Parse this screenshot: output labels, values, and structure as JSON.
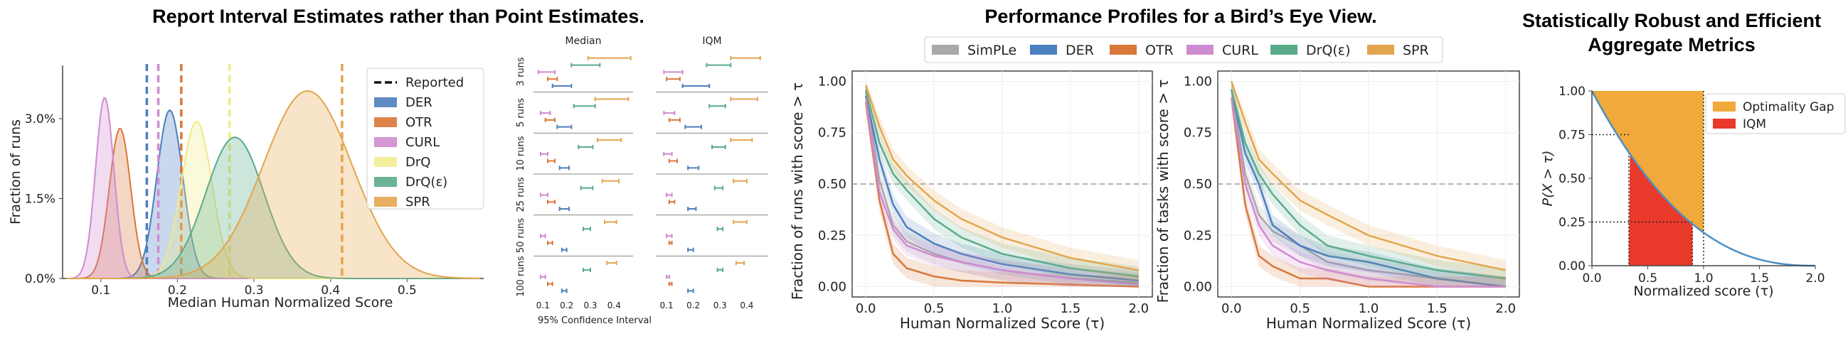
{
  "titles": {
    "t1": "Report Interval Estimates rather than Point Estimates.",
    "t2": "Performance Profiles for a Bird’s Eye View.",
    "t3a": "Statistically Robust and Efficient",
    "t3b": "Aggregate Metrics"
  },
  "colors": {
    "SimPLe": "#a9a9a9",
    "DER": "#4c7fbf",
    "OTR": "#d9773a",
    "CURL": "#cf8bd0",
    "DrQ": "#f0ea86",
    "DrQ(ε)": "#5aab8a",
    "SPR": "#e3a54d",
    "OptimalityGap": "#f0a93a",
    "IQM": "#e8392b"
  },
  "chart_data": [
    {
      "type": "area",
      "id": "density",
      "xlabel": "Median Human Normalized Score",
      "ylabel": "Fraction of runs",
      "xlim": [
        0.05,
        0.6
      ],
      "ylim": [
        0,
        0.04
      ],
      "xticks": [
        "0.1",
        "0.2",
        "0.3",
        "0.4",
        "0.5"
      ],
      "yticks": [
        "0.0%",
        "1.5%",
        "3.0%"
      ],
      "legend_title": "Reported",
      "legend_position": "top-right",
      "series": [
        {
          "name": "DER",
          "mean": 0.19,
          "sd": 0.017,
          "peak": 0.0316,
          "reported": 0.16
        },
        {
          "name": "OTR",
          "mean": 0.125,
          "sd": 0.014,
          "peak": 0.0282,
          "reported": 0.205
        },
        {
          "name": "CURL",
          "mean": 0.105,
          "sd": 0.012,
          "peak": 0.034,
          "reported": 0.175
        },
        {
          "name": "DrQ",
          "mean": 0.225,
          "sd": 0.02,
          "peak": 0.0295,
          "reported": 0.268
        },
        {
          "name": "DrQ(ε)",
          "mean": 0.275,
          "sd": 0.038,
          "peak": 0.0265,
          "reported": null
        },
        {
          "name": "SPR",
          "mean": 0.37,
          "sd": 0.058,
          "peak": 0.0352,
          "reported": 0.415
        }
      ]
    },
    {
      "type": "scatter",
      "id": "intervals",
      "panels": [
        "Median",
        "IQM"
      ],
      "rows": [
        "3 runs",
        "5 runs",
        "10 runs",
        "25 runs",
        "50 runs",
        "100 runs"
      ],
      "xlabel": "95% Confidence Interval",
      "xticks": [
        "0.1",
        "0.2",
        "0.3",
        "0.4"
      ],
      "xlim": [
        0.06,
        0.48
      ],
      "algorithms": [
        "DER",
        "OTR",
        "CURL",
        "DrQ(ε)",
        "SPR"
      ],
      "median": [
        [
          [
            0.14,
            0.22
          ],
          [
            0.12,
            0.16
          ],
          [
            0.08,
            0.15
          ],
          [
            0.22,
            0.34
          ],
          [
            0.29,
            0.47
          ]
        ],
        [
          [
            0.16,
            0.22
          ],
          [
            0.11,
            0.15
          ],
          [
            0.09,
            0.13
          ],
          [
            0.23,
            0.32
          ],
          [
            0.32,
            0.46
          ]
        ],
        [
          [
            0.17,
            0.21
          ],
          [
            0.12,
            0.15
          ],
          [
            0.09,
            0.12
          ],
          [
            0.25,
            0.31
          ],
          [
            0.33,
            0.43
          ]
        ],
        [
          [
            0.17,
            0.21
          ],
          [
            0.12,
            0.15
          ],
          [
            0.09,
            0.12
          ],
          [
            0.26,
            0.31
          ],
          [
            0.35,
            0.42
          ]
        ],
        [
          [
            0.18,
            0.2
          ],
          [
            0.12,
            0.14
          ],
          [
            0.09,
            0.11
          ],
          [
            0.27,
            0.3
          ],
          [
            0.36,
            0.41
          ]
        ],
        [
          [
            0.18,
            0.2
          ],
          [
            0.12,
            0.14
          ],
          [
            0.09,
            0.11
          ],
          [
            0.27,
            0.3
          ],
          [
            0.37,
            0.41
          ]
        ]
      ],
      "iqm": [
        [
          [
            0.16,
            0.26
          ],
          [
            0.1,
            0.15
          ],
          [
            0.09,
            0.16
          ],
          [
            0.25,
            0.34
          ],
          [
            0.34,
            0.45
          ]
        ],
        [
          [
            0.17,
            0.23
          ],
          [
            0.11,
            0.15
          ],
          [
            0.09,
            0.13
          ],
          [
            0.26,
            0.32
          ],
          [
            0.34,
            0.44
          ]
        ],
        [
          [
            0.18,
            0.22
          ],
          [
            0.11,
            0.14
          ],
          [
            0.09,
            0.12
          ],
          [
            0.27,
            0.32
          ],
          [
            0.34,
            0.42
          ]
        ],
        [
          [
            0.18,
            0.21
          ],
          [
            0.11,
            0.13
          ],
          [
            0.1,
            0.12
          ],
          [
            0.28,
            0.31
          ],
          [
            0.35,
            0.4
          ]
        ],
        [
          [
            0.18,
            0.2
          ],
          [
            0.11,
            0.12
          ],
          [
            0.1,
            0.12
          ],
          [
            0.29,
            0.31
          ],
          [
            0.35,
            0.4
          ]
        ],
        [
          [
            0.18,
            0.2
          ],
          [
            0.11,
            0.12
          ],
          [
            0.1,
            0.11
          ],
          [
            0.29,
            0.31
          ],
          [
            0.36,
            0.39
          ]
        ]
      ]
    },
    {
      "type": "line",
      "id": "profiles",
      "legend": [
        "SimPLe",
        "DER",
        "OTR",
        "CURL",
        "DrQ(ε)",
        "SPR"
      ],
      "legend_position": "top",
      "xlim": [
        -0.1,
        2.1
      ],
      "ylim": [
        -0.05,
        1.05
      ],
      "xticks": [
        "0.0",
        "0.5",
        "1.0",
        "1.5",
        "2.0"
      ],
      "yticks": [
        "0.00",
        "0.25",
        "0.50",
        "0.75",
        "1.00"
      ],
      "threshold": 0.5,
      "runs": {
        "ylabel": "Fraction of runs with score > τ",
        "xlabel": "Human Normalized Score (τ)",
        "x": [
          0,
          0.1,
          0.2,
          0.3,
          0.5,
          0.7,
          1.0,
          1.5,
          2.0
        ],
        "series": [
          {
            "name": "SimPLe",
            "values": [
              0.95,
              0.52,
              0.3,
              0.22,
              0.16,
              0.12,
              0.08,
              0.04,
              0.02
            ]
          },
          {
            "name": "DER",
            "values": [
              0.93,
              0.62,
              0.4,
              0.29,
              0.21,
              0.16,
              0.11,
              0.06,
              0.03
            ]
          },
          {
            "name": "OTR",
            "values": [
              0.9,
              0.42,
              0.16,
              0.09,
              0.05,
              0.03,
              0.02,
              0.01,
              0.0
            ]
          },
          {
            "name": "CURL",
            "values": [
              0.92,
              0.46,
              0.28,
              0.2,
              0.15,
              0.12,
              0.08,
              0.04,
              0.01
            ]
          },
          {
            "name": "DrQ(ε)",
            "values": [
              0.96,
              0.7,
              0.55,
              0.47,
              0.33,
              0.24,
              0.16,
              0.09,
              0.05
            ]
          },
          {
            "name": "SPR",
            "values": [
              0.98,
              0.78,
              0.62,
              0.54,
              0.42,
              0.33,
              0.24,
              0.14,
              0.08
            ]
          }
        ]
      },
      "tasks": {
        "ylabel": "Fraction of tasks with score > τ",
        "xlabel": "Human Normalized Score (τ)",
        "x": [
          0,
          0.1,
          0.2,
          0.3,
          0.5,
          0.7,
          1.0,
          1.5,
          2.0
        ],
        "series": [
          {
            "name": "SimPLe",
            "values": [
              0.96,
              0.55,
              0.35,
              0.27,
              0.2,
              0.12,
              0.08,
              0.04,
              0.0
            ]
          },
          {
            "name": "DER",
            "values": [
              0.96,
              0.65,
              0.5,
              0.3,
              0.2,
              0.15,
              0.12,
              0.04,
              0.0
            ]
          },
          {
            "name": "OTR",
            "values": [
              0.92,
              0.4,
              0.15,
              0.1,
              0.04,
              0.04,
              0.0,
              0.0,
              0.0
            ]
          },
          {
            "name": "CURL",
            "values": [
              0.92,
              0.5,
              0.3,
              0.2,
              0.12,
              0.08,
              0.04,
              0.0,
              0.0
            ]
          },
          {
            "name": "DrQ(ε)",
            "values": [
              0.96,
              0.7,
              0.55,
              0.45,
              0.3,
              0.2,
              0.15,
              0.08,
              0.04
            ]
          },
          {
            "name": "SPR",
            "values": [
              1.0,
              0.8,
              0.62,
              0.55,
              0.42,
              0.35,
              0.25,
              0.15,
              0.08
            ]
          }
        ]
      }
    },
    {
      "type": "area",
      "id": "aggregate",
      "xlabel": "Normalized score (τ)",
      "ylabel": "P(X > τ)",
      "xlim": [
        0,
        2.0
      ],
      "ylim": [
        0,
        1.0
      ],
      "xticks": [
        "0.0",
        "0.5",
        "1.0",
        "1.5",
        "2.0"
      ],
      "yticks": [
        "0.00",
        "0.25",
        "0.50",
        "0.75",
        "1.00"
      ],
      "iqm_range": [
        0.33,
        0.9
      ],
      "quantiles": [
        0.25,
        0.75
      ],
      "legend": [
        "Optimality Gap",
        "IQM"
      ],
      "legend_position": "top-right"
    }
  ]
}
